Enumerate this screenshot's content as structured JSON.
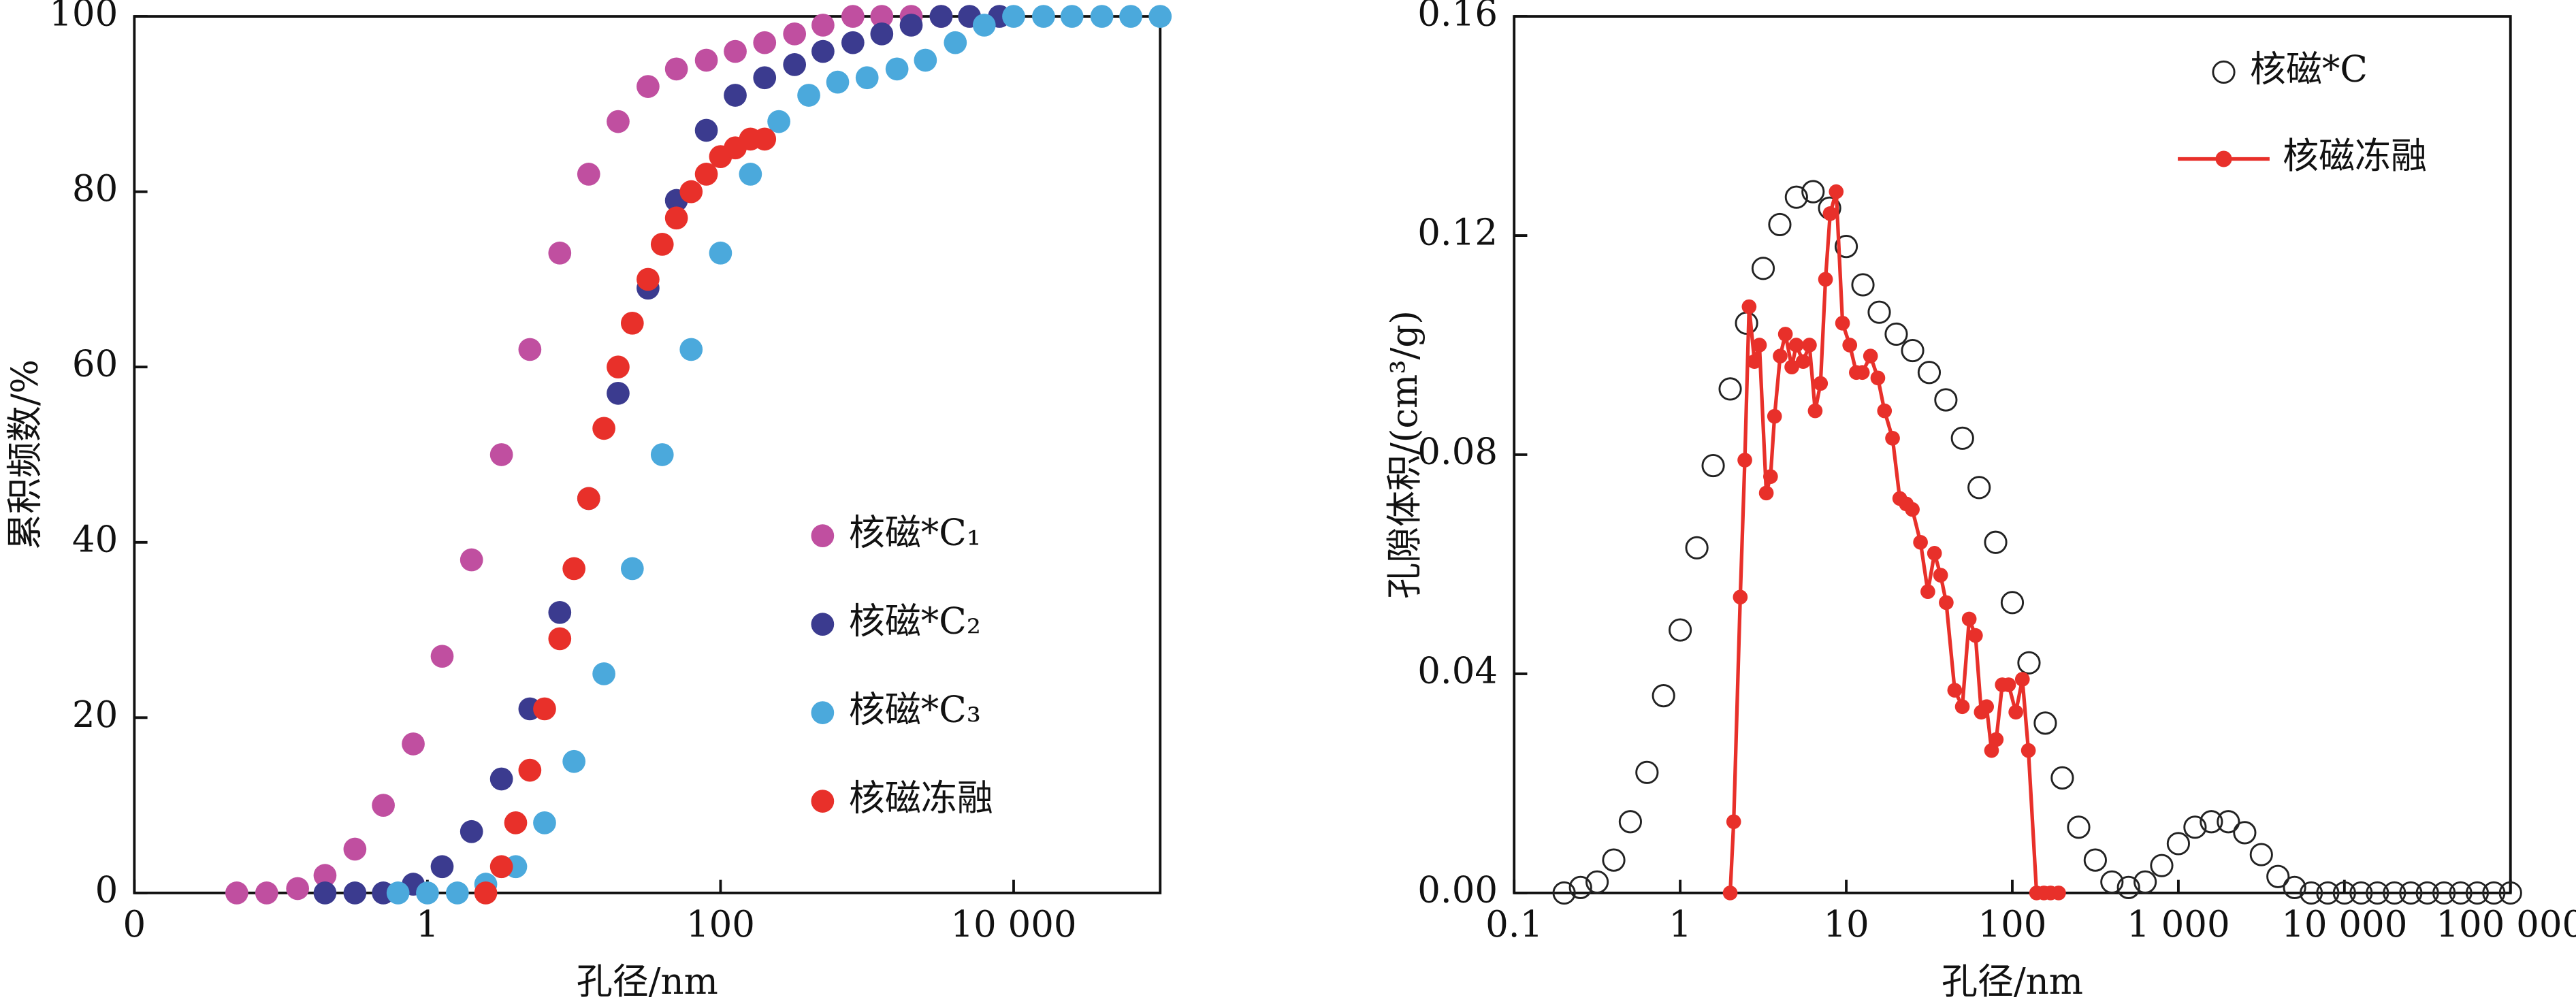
{
  "chart_data": [
    {
      "type": "scatter",
      "xscale": "log",
      "legend": "lower right",
      "x_label": "孔径/nm",
      "y_label": "累积频数/%",
      "xlim": [
        0.01,
        100000
      ],
      "xticks": [
        {
          "value": 0.01,
          "label": "0"
        },
        1,
        100,
        {
          "value": 10000,
          "label": "10 000"
        }
      ],
      "ylim": [
        0,
        100
      ],
      "yticks": [
        0,
        20,
        40,
        60,
        80,
        100
      ],
      "series": [
        {
          "name": "核磁*C₁",
          "color": "#c04fa0",
          "marker_fill": true,
          "line": false,
          "x": [
            0.05,
            0.08,
            0.13,
            0.2,
            0.32,
            0.5,
            0.8,
            1.26,
            2,
            3.2,
            5,
            8,
            12.6,
            20,
            32,
            50,
            80,
            126,
            200,
            320,
            500,
            800,
            1260,
            2000,
            3200
          ],
          "values": [
            0,
            0,
            0.5,
            2,
            5,
            10,
            17,
            27,
            38,
            50,
            62,
            73,
            82,
            88,
            92,
            94,
            95,
            96,
            97,
            98,
            99,
            100,
            100,
            100,
            100
          ]
        },
        {
          "name": "核磁*C₂",
          "color": "#3b3b8f",
          "marker_fill": true,
          "line": false,
          "x": [
            0.2,
            0.32,
            0.5,
            0.8,
            1.26,
            2,
            3.2,
            5,
            8,
            12.6,
            20,
            32,
            50,
            80,
            126,
            200,
            320,
            500,
            800,
            1260,
            2000,
            3200,
            5000,
            8000
          ],
          "values": [
            0,
            0,
            0,
            1,
            3,
            7,
            13,
            21,
            32,
            45,
            57,
            69,
            79,
            87,
            91,
            93,
            94.5,
            96,
            97,
            98,
            99,
            100,
            100,
            100
          ]
        },
        {
          "name": "核磁*C₃",
          "color": "#4ba9dc",
          "marker_fill": true,
          "line": false,
          "x": [
            0.63,
            1,
            1.6,
            2.5,
            4,
            6.3,
            10,
            16,
            25,
            40,
            63,
            100,
            160,
            250,
            400,
            630,
            1000,
            1600,
            2500,
            4000,
            6300,
            10000,
            16000,
            25000,
            40000,
            63000,
            100000
          ],
          "values": [
            0,
            0,
            0,
            1,
            3,
            8,
            15,
            25,
            37,
            50,
            62,
            73,
            82,
            88,
            91,
            92.5,
            93,
            94,
            95,
            97,
            99,
            100,
            100,
            100,
            100,
            100,
            100
          ]
        },
        {
          "name": "核磁冻融",
          "color": "#e8302a",
          "marker_fill": true,
          "line": false,
          "x": [
            2.5,
            3.2,
            4,
            5,
            6.3,
            8,
            10,
            12.6,
            16,
            20,
            25,
            32,
            40,
            50,
            63,
            80,
            100,
            126,
            160,
            200
          ],
          "values": [
            0,
            3,
            8,
            14,
            21,
            29,
            37,
            45,
            53,
            60,
            65,
            70,
            74,
            77,
            80,
            82,
            84,
            85,
            86,
            86
          ]
        }
      ]
    },
    {
      "type": "scatter",
      "xscale": "log",
      "legend": "upper right",
      "x_label": "孔径/nm",
      "y_label": "孔隙体积/(cm³/g)",
      "xlim": [
        0.1,
        100000
      ],
      "xticks": [
        0.1,
        1,
        10,
        100,
        {
          "value": 1000,
          "label": "1 000"
        },
        {
          "value": 10000,
          "label": "10 000"
        },
        {
          "value": 100000,
          "label": "100 000"
        }
      ],
      "ylim": [
        0,
        0.16
      ],
      "yticks": [
        {
          "value": 0,
          "label": "0.00"
        },
        0.04,
        0.08,
        0.12,
        0.16
      ],
      "series": [
        {
          "name": "核磁*C",
          "color": "#222222",
          "marker_fill": false,
          "line": false,
          "x": [
            0.2,
            0.251,
            0.316,
            0.398,
            0.501,
            0.631,
            0.794,
            1,
            1.26,
            1.58,
            2,
            2.51,
            3.16,
            3.98,
            5.01,
            6.31,
            7.94,
            10,
            12.6,
            15.8,
            20,
            25.1,
            31.6,
            39.8,
            50.1,
            63.1,
            79.4,
            100,
            126,
            158,
            200,
            251,
            316,
            398,
            501,
            631,
            794,
            1000,
            1260,
            1580,
            2000,
            2510,
            3160,
            3980,
            5010,
            6310,
            7940,
            10000,
            12600,
            15800,
            20000,
            25100,
            31600,
            39800,
            50100,
            63100,
            79400,
            100000
          ],
          "values": [
            0,
            0.001,
            0.002,
            0.006,
            0.013,
            0.022,
            0.036,
            0.048,
            0.063,
            0.078,
            0.092,
            0.104,
            0.114,
            0.122,
            0.127,
            0.128,
            0.125,
            0.118,
            0.111,
            0.106,
            0.102,
            0.099,
            0.095,
            0.09,
            0.083,
            0.074,
            0.064,
            0.053,
            0.042,
            0.031,
            0.021,
            0.012,
            0.006,
            0.002,
            0.001,
            0.002,
            0.005,
            0.009,
            0.012,
            0.013,
            0.013,
            0.011,
            0.007,
            0.003,
            0.001,
            0,
            0,
            0,
            0,
            0,
            0,
            0,
            0,
            0,
            0,
            0,
            0,
            0
          ]
        },
        {
          "name": "核磁冻融",
          "color": "#e8302a",
          "marker_fill": true,
          "line": true,
          "x": [
            2,
            2.1,
            2.3,
            2.45,
            2.6,
            2.8,
            3,
            3.3,
            3.5,
            3.7,
            4,
            4.3,
            4.7,
            5,
            5.5,
            6,
            6.5,
            7,
            7.5,
            8,
            8.7,
            9.5,
            10.5,
            11.5,
            12.5,
            14,
            15.5,
            17,
            19,
            21,
            23,
            25,
            28,
            31,
            34,
            37,
            40,
            45,
            50,
            55,
            60,
            65,
            70,
            75,
            80,
            87,
            95,
            105,
            115,
            125,
            140,
            155,
            170,
            190
          ],
          "values": [
            0,
            0.013,
            0.054,
            0.079,
            0.107,
            0.097,
            0.1,
            0.073,
            0.076,
            0.087,
            0.098,
            0.102,
            0.096,
            0.1,
            0.097,
            0.1,
            0.088,
            0.093,
            0.112,
            0.124,
            0.128,
            0.104,
            0.1,
            0.095,
            0.095,
            0.098,
            0.094,
            0.088,
            0.083,
            0.072,
            0.071,
            0.07,
            0.064,
            0.055,
            0.062,
            0.058,
            0.053,
            0.037,
            0.034,
            0.05,
            0.047,
            0.033,
            0.034,
            0.026,
            0.028,
            0.038,
            0.038,
            0.033,
            0.039,
            0.026,
            0,
            0,
            0,
            0
          ]
        }
      ]
    }
  ]
}
